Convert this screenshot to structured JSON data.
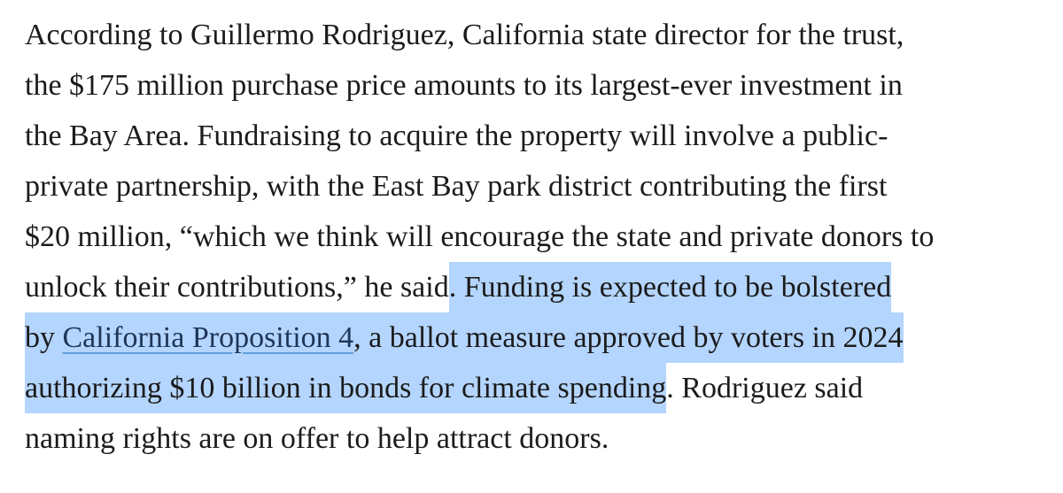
{
  "paragraph": {
    "lines": [
      [
        {
          "text": "According to Guillermo Rodriguez, California state director for the trust,",
          "highlighted": false,
          "link": false
        }
      ],
      [
        {
          "text": "the $175 million purchase price amounts to its largest-ever investment in",
          "highlighted": false,
          "link": false
        }
      ],
      [
        {
          "text": "the Bay Area. Fundraising to acquire the property will involve a public-",
          "highlighted": false,
          "link": false
        }
      ],
      [
        {
          "text": "private partnership, with the East Bay park district contributing the first",
          "highlighted": false,
          "link": false
        }
      ],
      [
        {
          "text": "$20 million, “which we think will encourage the state and private donors to",
          "highlighted": false,
          "link": false
        }
      ],
      [
        {
          "text": "unlock their contributions,” he said",
          "highlighted": false,
          "link": false
        },
        {
          "text": ". Funding is expected to be bolstered",
          "highlighted": true,
          "link": false
        }
      ],
      [
        {
          "text": "by ",
          "highlighted": true,
          "link": false
        },
        {
          "text": "California Proposition 4",
          "highlighted": true,
          "link": true
        },
        {
          "text": ", a ballot measure approved by voters in 2024",
          "highlighted": true,
          "link": false
        }
      ],
      [
        {
          "text": "authorizing $10 billion in bonds for climate spending",
          "highlighted": true,
          "link": false
        },
        {
          "text": ". Rodriguez said",
          "highlighted": false,
          "link": false
        }
      ],
      [
        {
          "text": "naming rights are on offer to help attract donors.",
          "highlighted": false,
          "link": false
        }
      ]
    ]
  }
}
